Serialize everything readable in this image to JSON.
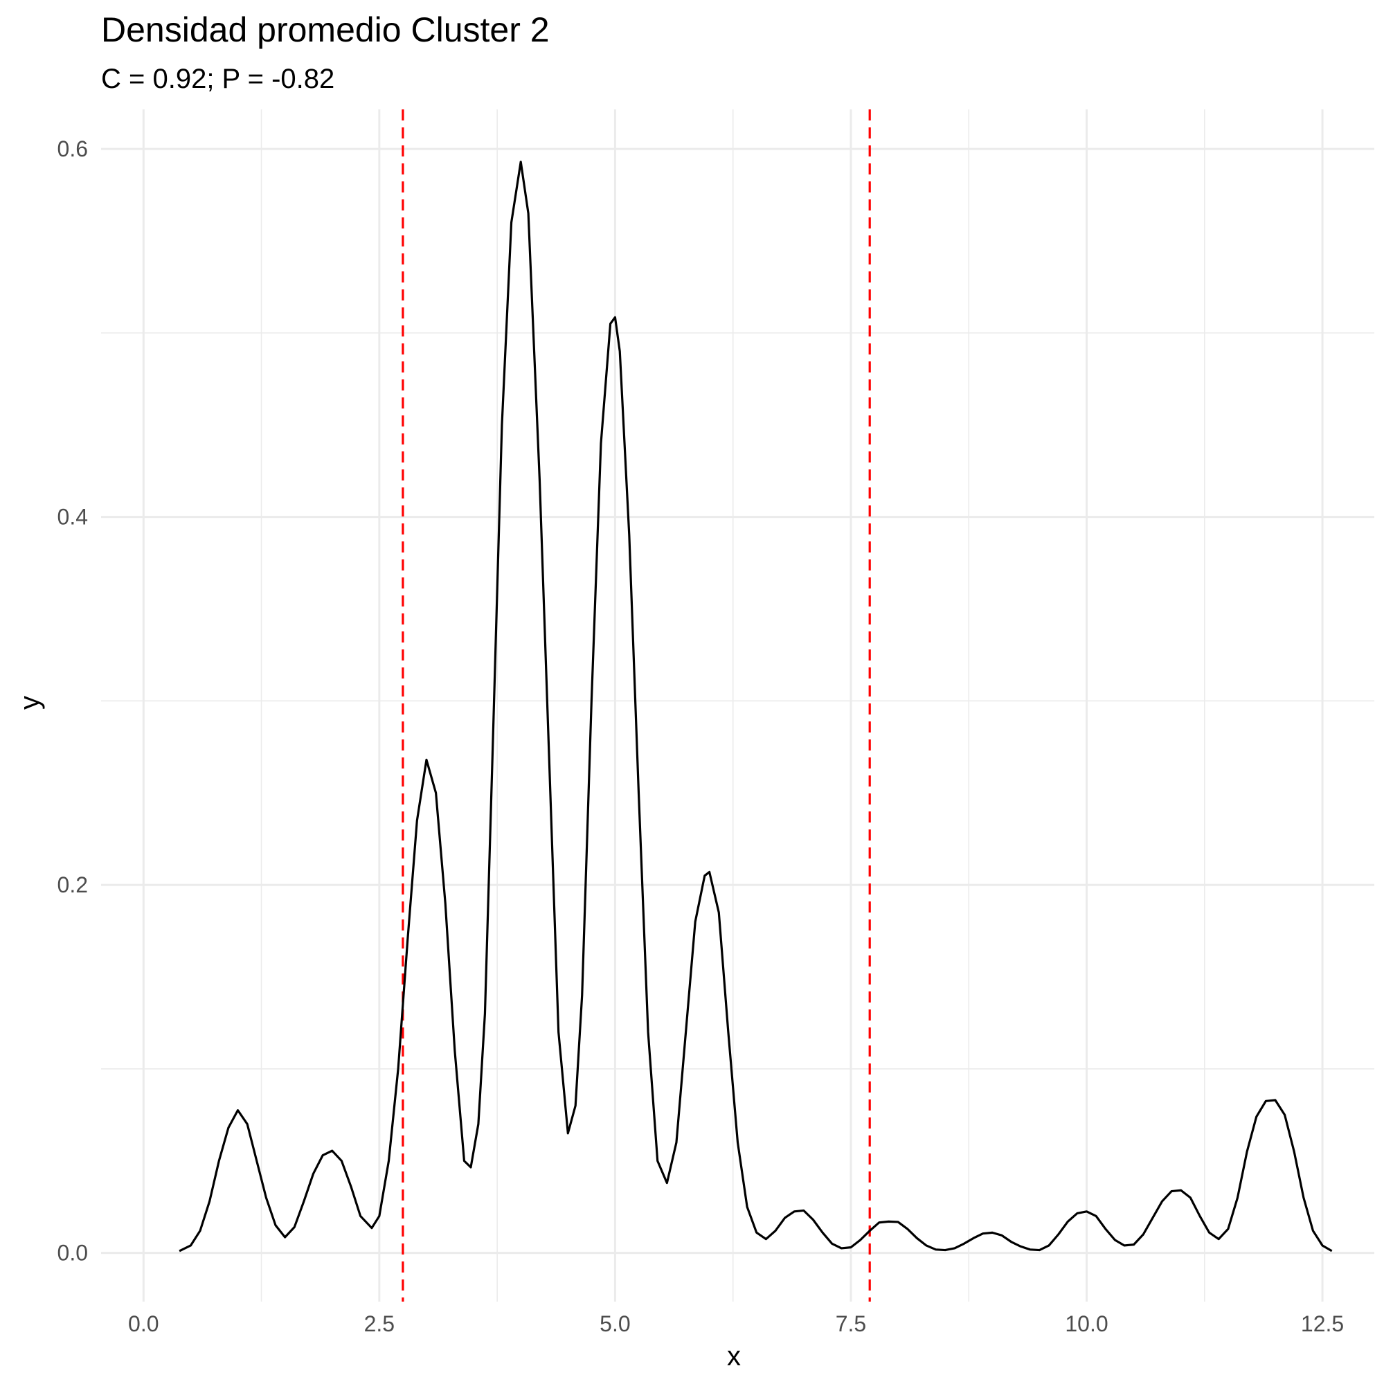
{
  "chart_data": {
    "type": "line",
    "title": "Densidad promedio Cluster 2",
    "subtitle": "C = 0.92; P = -0.82",
    "xlabel": "x",
    "ylabel": "y",
    "xlim": [
      -0.45,
      13.05
    ],
    "ylim": [
      -0.0265,
      0.6215
    ],
    "x_ticks": [
      0.0,
      2.5,
      5.0,
      7.5,
      10.0,
      12.5
    ],
    "x_tick_labels": [
      "0.0",
      "2.5",
      "5.0",
      "7.5",
      "10.0",
      "12.5"
    ],
    "y_ticks": [
      0.0,
      0.2,
      0.4,
      0.6
    ],
    "y_tick_labels": [
      "0.0",
      "0.2",
      "0.4",
      "0.6"
    ],
    "grid": true,
    "series": [
      {
        "color": "#000000",
        "points": [
          [
            0.38,
            0.001
          ],
          [
            0.5,
            0.004
          ],
          [
            0.6,
            0.012
          ],
          [
            0.7,
            0.028
          ],
          [
            0.8,
            0.05
          ],
          [
            0.9,
            0.068
          ],
          [
            1.0,
            0.0775
          ],
          [
            1.1,
            0.07
          ],
          [
            1.2,
            0.05
          ],
          [
            1.3,
            0.03
          ],
          [
            1.4,
            0.015
          ],
          [
            1.5,
            0.0085
          ],
          [
            1.6,
            0.014
          ],
          [
            1.7,
            0.028
          ],
          [
            1.8,
            0.043
          ],
          [
            1.9,
            0.053
          ],
          [
            2.0,
            0.0555
          ],
          [
            2.1,
            0.05
          ],
          [
            2.2,
            0.036
          ],
          [
            2.3,
            0.02
          ],
          [
            2.42,
            0.0135
          ],
          [
            2.5,
            0.02
          ],
          [
            2.6,
            0.05
          ],
          [
            2.7,
            0.1
          ],
          [
            2.8,
            0.17
          ],
          [
            2.9,
            0.235
          ],
          [
            3.0,
            0.268
          ],
          [
            3.1,
            0.25
          ],
          [
            3.2,
            0.19
          ],
          [
            3.3,
            0.11
          ],
          [
            3.4,
            0.05
          ],
          [
            3.47,
            0.0465
          ],
          [
            3.55,
            0.07
          ],
          [
            3.62,
            0.13
          ],
          [
            3.7,
            0.27
          ],
          [
            3.8,
            0.45
          ],
          [
            3.9,
            0.56
          ],
          [
            4.0,
            0.593
          ],
          [
            4.08,
            0.565
          ],
          [
            4.2,
            0.42
          ],
          [
            4.3,
            0.27
          ],
          [
            4.4,
            0.12
          ],
          [
            4.5,
            0.065
          ],
          [
            4.58,
            0.08
          ],
          [
            4.65,
            0.14
          ],
          [
            4.75,
            0.3
          ],
          [
            4.85,
            0.44
          ],
          [
            4.95,
            0.505
          ],
          [
            5.0,
            0.5085
          ],
          [
            5.05,
            0.49
          ],
          [
            5.15,
            0.39
          ],
          [
            5.25,
            0.25
          ],
          [
            5.35,
            0.12
          ],
          [
            5.45,
            0.05
          ],
          [
            5.55,
            0.038
          ],
          [
            5.65,
            0.06
          ],
          [
            5.75,
            0.12
          ],
          [
            5.85,
            0.18
          ],
          [
            5.95,
            0.205
          ],
          [
            6.0,
            0.207
          ],
          [
            6.1,
            0.185
          ],
          [
            6.2,
            0.12
          ],
          [
            6.3,
            0.06
          ],
          [
            6.4,
            0.025
          ],
          [
            6.5,
            0.011
          ],
          [
            6.6,
            0.0075
          ],
          [
            6.7,
            0.012
          ],
          [
            6.8,
            0.019
          ],
          [
            6.9,
            0.0225
          ],
          [
            7.0,
            0.023
          ],
          [
            7.1,
            0.018
          ],
          [
            7.2,
            0.011
          ],
          [
            7.3,
            0.005
          ],
          [
            7.4,
            0.0025
          ],
          [
            7.5,
            0.003
          ],
          [
            7.6,
            0.007
          ],
          [
            7.7,
            0.012
          ],
          [
            7.8,
            0.0165
          ],
          [
            7.9,
            0.017
          ],
          [
            8.0,
            0.0168
          ],
          [
            8.1,
            0.013
          ],
          [
            8.2,
            0.008
          ],
          [
            8.3,
            0.004
          ],
          [
            8.4,
            0.0018
          ],
          [
            8.5,
            0.0015
          ],
          [
            8.6,
            0.0025
          ],
          [
            8.7,
            0.005
          ],
          [
            8.8,
            0.008
          ],
          [
            8.9,
            0.0105
          ],
          [
            9.0,
            0.011
          ],
          [
            9.1,
            0.0095
          ],
          [
            9.2,
            0.006
          ],
          [
            9.3,
            0.0035
          ],
          [
            9.4,
            0.0018
          ],
          [
            9.5,
            0.0015
          ],
          [
            9.6,
            0.004
          ],
          [
            9.7,
            0.01
          ],
          [
            9.8,
            0.017
          ],
          [
            9.9,
            0.0215
          ],
          [
            10.0,
            0.0225
          ],
          [
            10.1,
            0.02
          ],
          [
            10.2,
            0.013
          ],
          [
            10.3,
            0.007
          ],
          [
            10.4,
            0.004
          ],
          [
            10.5,
            0.0045
          ],
          [
            10.6,
            0.01
          ],
          [
            10.7,
            0.019
          ],
          [
            10.8,
            0.028
          ],
          [
            10.9,
            0.0335
          ],
          [
            11.0,
            0.034
          ],
          [
            11.1,
            0.03
          ],
          [
            11.2,
            0.02
          ],
          [
            11.3,
            0.011
          ],
          [
            11.4,
            0.0075
          ],
          [
            11.5,
            0.013
          ],
          [
            11.6,
            0.03
          ],
          [
            11.7,
            0.055
          ],
          [
            11.8,
            0.074
          ],
          [
            11.9,
            0.0825
          ],
          [
            12.0,
            0.083
          ],
          [
            12.1,
            0.075
          ],
          [
            12.2,
            0.055
          ],
          [
            12.3,
            0.03
          ],
          [
            12.4,
            0.012
          ],
          [
            12.5,
            0.004
          ],
          [
            12.6,
            0.001
          ]
        ]
      }
    ],
    "reference_lines": [
      {
        "orientation": "vertical",
        "x": 2.75,
        "color": "#ff0000",
        "style": "dashed"
      },
      {
        "orientation": "vertical",
        "x": 7.7,
        "color": "#ff0000",
        "style": "dashed"
      }
    ]
  }
}
